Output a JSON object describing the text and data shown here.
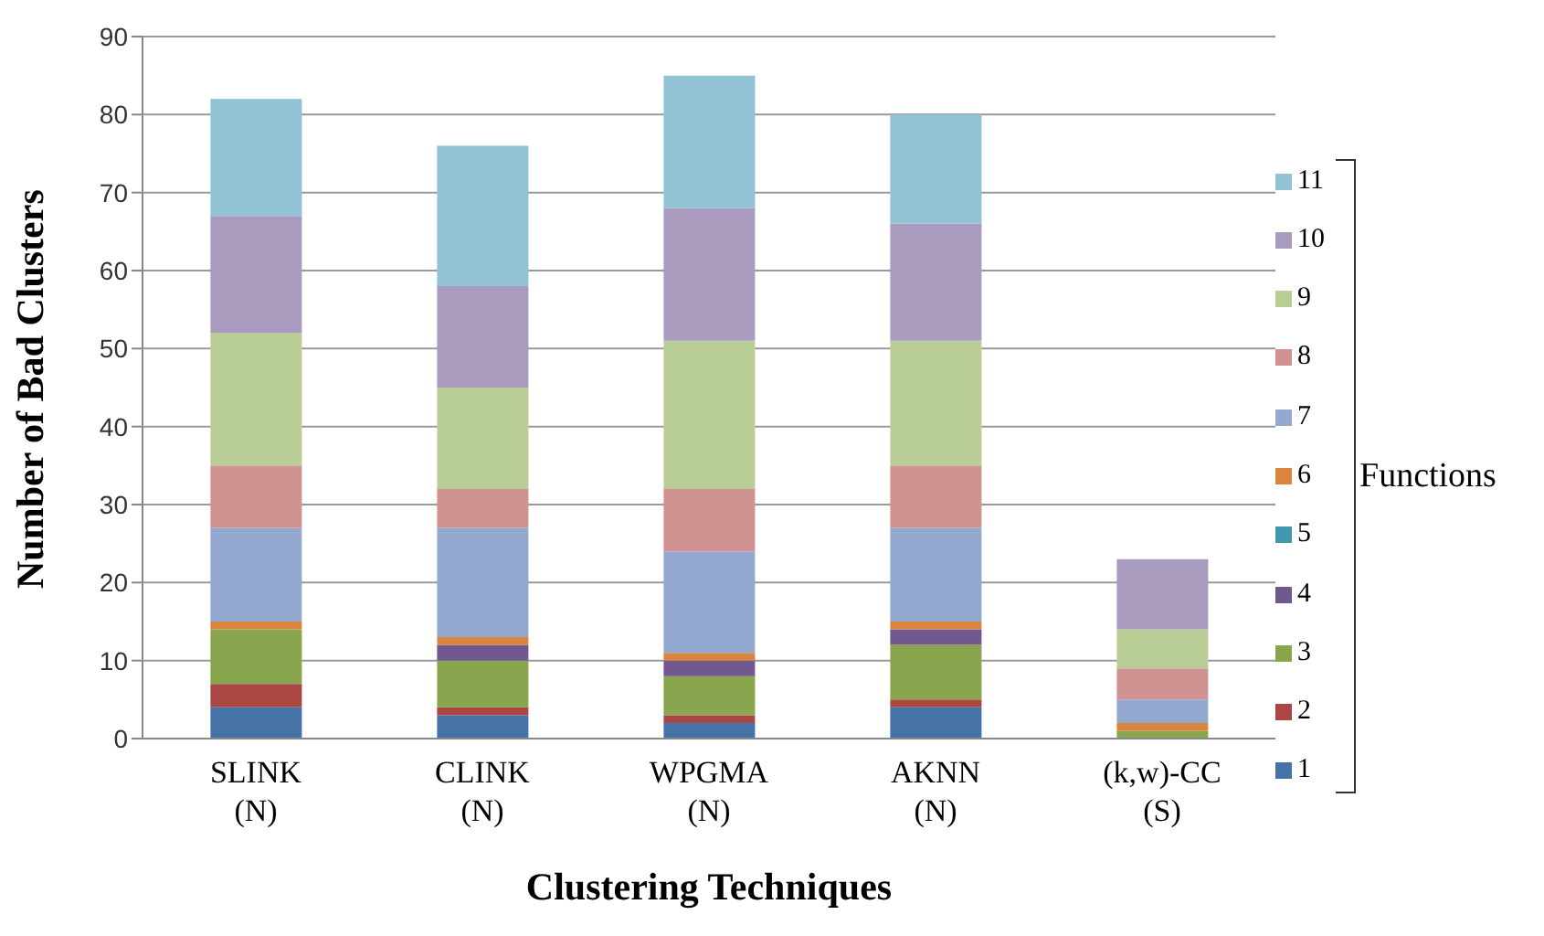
{
  "chart_data": {
    "type": "bar",
    "stacked": true,
    "xlabel": "Clustering Techniques",
    "ylabel": "Number of Bad Clusters",
    "legend_title": "Functions",
    "categories": [
      "SLINK\n(N)",
      "CLINK\n(N)",
      "WPGMA\n(N)",
      "AKNN\n(N)",
      "(k,w)-CC\n(S)"
    ],
    "series": [
      {
        "name": "1",
        "color": "#4572a7",
        "values": [
          4,
          3,
          2,
          4,
          0
        ]
      },
      {
        "name": "2",
        "color": "#aa4643",
        "values": [
          3,
          1,
          1,
          1,
          0
        ]
      },
      {
        "name": "3",
        "color": "#89a54e",
        "values": [
          7,
          6,
          5,
          7,
          1
        ]
      },
      {
        "name": "4",
        "color": "#71588f",
        "values": [
          0,
          2,
          2,
          2,
          0
        ]
      },
      {
        "name": "5",
        "color": "#4198af",
        "values": [
          0,
          0,
          0,
          0,
          0
        ]
      },
      {
        "name": "6",
        "color": "#db843d",
        "values": [
          1,
          1,
          1,
          1,
          1
        ]
      },
      {
        "name": "7",
        "color": "#93a9cf",
        "values": [
          12,
          14,
          13,
          12,
          3
        ]
      },
      {
        "name": "8",
        "color": "#d19392",
        "values": [
          8,
          5,
          8,
          8,
          4
        ]
      },
      {
        "name": "9",
        "color": "#b9cd96",
        "values": [
          17,
          13,
          19,
          16,
          5
        ]
      },
      {
        "name": "10",
        "color": "#a99bbd",
        "values": [
          15,
          13,
          17,
          15,
          9
        ]
      },
      {
        "name": "11",
        "color": "#92c3d4",
        "values": [
          15,
          18,
          17,
          14,
          0
        ]
      }
    ],
    "ylim": [
      0,
      90
    ],
    "yticks": [
      0,
      10,
      20,
      30,
      40,
      50,
      60,
      70,
      80,
      90
    ],
    "grid": "y",
    "legend": "right"
  }
}
